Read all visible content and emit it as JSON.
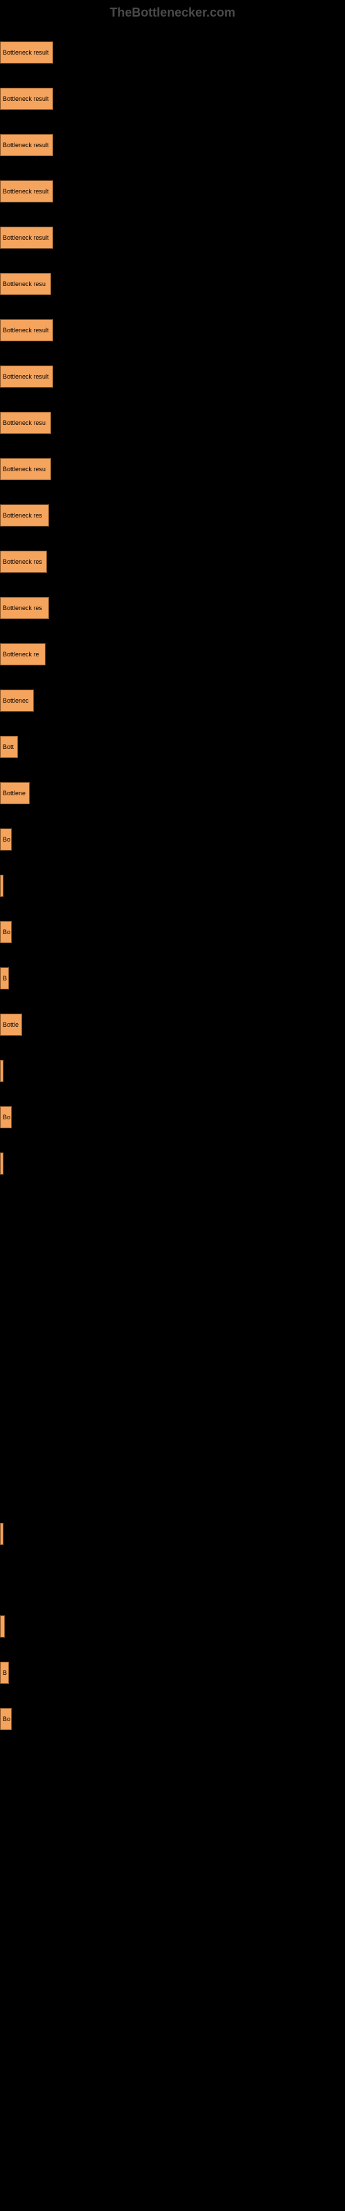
{
  "watermark": "TheBottlenecker.com",
  "chart": {
    "type": "bar",
    "bar_color": "#f5a45e",
    "bar_border_color": "#8b5a2b",
    "background_color": "#000000",
    "text_color": "#000000",
    "watermark_color": "#4a4a4a",
    "label_fontsize": 9,
    "bars": [
      {
        "label": "Bottleneck result",
        "width": 77
      },
      {
        "label": "Bottleneck result",
        "width": 77
      },
      {
        "label": "Bottleneck result",
        "width": 77
      },
      {
        "label": "Bottleneck result",
        "width": 77
      },
      {
        "label": "Bottleneck result",
        "width": 77
      },
      {
        "label": "Bottleneck resu",
        "width": 74
      },
      {
        "label": "Bottleneck result",
        "width": 77
      },
      {
        "label": "Bottleneck result",
        "width": 77
      },
      {
        "label": "Bottleneck resu",
        "width": 74
      },
      {
        "label": "Bottleneck resu",
        "width": 74
      },
      {
        "label": "Bottleneck res",
        "width": 71
      },
      {
        "label": "Bottleneck res",
        "width": 68
      },
      {
        "label": "Bottleneck res",
        "width": 71
      },
      {
        "label": "Bottleneck re",
        "width": 66
      },
      {
        "label": "Bottlenec",
        "width": 49
      },
      {
        "label": "Bott",
        "width": 26
      },
      {
        "label": "Bottlene",
        "width": 43
      },
      {
        "label": "Bo",
        "width": 17
      },
      {
        "label": "",
        "width": 3
      },
      {
        "label": "Bo",
        "width": 17
      },
      {
        "label": "B",
        "width": 13
      },
      {
        "label": "Bottle",
        "width": 32
      },
      {
        "label": "",
        "width": 3
      },
      {
        "label": "Bo",
        "width": 17
      },
      {
        "label": "",
        "width": 3
      },
      {
        "label": "",
        "width": 0
      },
      {
        "label": "",
        "width": 0
      },
      {
        "label": "",
        "width": 0
      },
      {
        "label": "",
        "width": 0
      },
      {
        "label": "",
        "width": 0
      },
      {
        "label": "",
        "width": 0
      },
      {
        "label": "",
        "width": 0
      },
      {
        "label": "",
        "width": 5
      },
      {
        "label": "",
        "width": 0
      },
      {
        "label": "",
        "width": 7
      },
      {
        "label": "B",
        "width": 13
      },
      {
        "label": "Bo",
        "width": 17
      }
    ]
  }
}
